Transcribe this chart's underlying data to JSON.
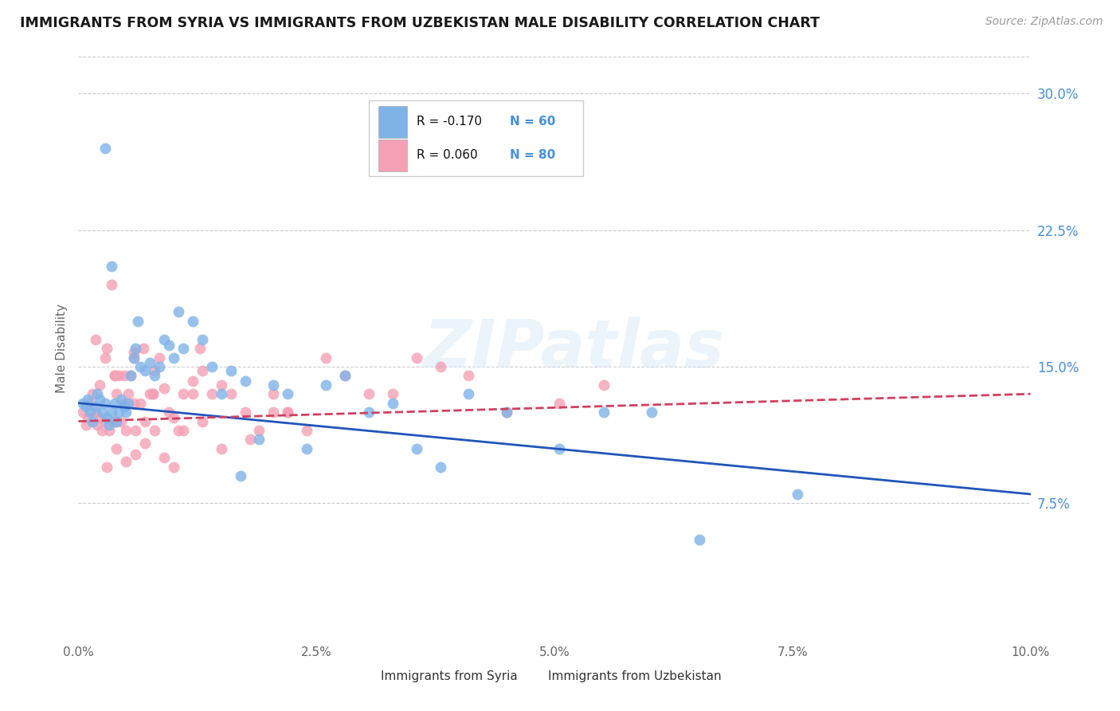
{
  "title": "IMMIGRANTS FROM SYRIA VS IMMIGRANTS FROM UZBEKISTAN MALE DISABILITY CORRELATION CHART",
  "source": "Source: ZipAtlas.com",
  "ylabel": "Male Disability",
  "xlim": [
    0.0,
    10.0
  ],
  "ylim": [
    0.0,
    32.0
  ],
  "x_ticks": [
    0.0,
    2.5,
    5.0,
    7.5,
    10.0
  ],
  "y_ticks_right": [
    7.5,
    15.0,
    22.5,
    30.0
  ],
  "legend_syria": "Immigrants from Syria",
  "legend_uzbekistan": "Immigrants from Uzbekistan",
  "R_syria": -0.17,
  "N_syria": 60,
  "R_uzbekistan": 0.06,
  "N_uzbekistan": 80,
  "syria_dot_color": "#7fb3e8",
  "uzbekistan_dot_color": "#f4a0b5",
  "syria_line_color": "#2255bb",
  "uzbekistan_line_color": "#d04060",
  "grid_color": "#cccccc",
  "watermark": "ZIPatlas",
  "syria_x": [
    0.05,
    0.08,
    0.1,
    0.12,
    0.15,
    0.18,
    0.2,
    0.22,
    0.25,
    0.28,
    0.3,
    0.32,
    0.35,
    0.38,
    0.4,
    0.42,
    0.45,
    0.48,
    0.5,
    0.52,
    0.55,
    0.58,
    0.6,
    0.62,
    0.65,
    0.7,
    0.75,
    0.8,
    0.85,
    0.9,
    0.95,
    1.0,
    1.05,
    1.1,
    1.2,
    1.3,
    1.4,
    1.5,
    1.6,
    1.75,
    1.9,
    2.05,
    2.2,
    2.4,
    2.6,
    2.8,
    3.05,
    3.3,
    3.55,
    3.8,
    4.1,
    4.5,
    5.05,
    5.52,
    6.02,
    6.52,
    0.28,
    0.35,
    7.55,
    1.7
  ],
  "syria_y": [
    13.0,
    12.8,
    13.2,
    12.5,
    12.0,
    12.8,
    13.5,
    13.2,
    12.5,
    13.0,
    12.2,
    11.8,
    12.5,
    13.0,
    12.0,
    12.5,
    13.2,
    12.8,
    12.5,
    13.0,
    14.5,
    15.5,
    16.0,
    17.5,
    15.0,
    14.8,
    15.2,
    14.5,
    15.0,
    16.5,
    16.2,
    15.5,
    18.0,
    16.0,
    17.5,
    16.5,
    15.0,
    13.5,
    14.8,
    14.2,
    11.0,
    14.0,
    13.5,
    10.5,
    14.0,
    14.5,
    12.5,
    13.0,
    10.5,
    9.5,
    13.5,
    12.5,
    10.5,
    12.5,
    12.5,
    5.5,
    27.0,
    20.5,
    8.0,
    9.0
  ],
  "uzbekistan_x": [
    0.05,
    0.08,
    0.1,
    0.12,
    0.15,
    0.18,
    0.2,
    0.22,
    0.25,
    0.28,
    0.3,
    0.32,
    0.35,
    0.38,
    0.4,
    0.42,
    0.45,
    0.48,
    0.5,
    0.52,
    0.55,
    0.58,
    0.6,
    0.65,
    0.7,
    0.75,
    0.8,
    0.85,
    0.9,
    0.95,
    1.0,
    1.05,
    1.1,
    1.2,
    1.3,
    1.4,
    1.5,
    1.6,
    1.75,
    1.9,
    2.05,
    2.2,
    2.4,
    2.6,
    2.8,
    3.05,
    3.3,
    3.55,
    3.8,
    4.1,
    4.5,
    5.05,
    5.52,
    0.3,
    0.4,
    0.5,
    0.6,
    0.7,
    0.8,
    0.9,
    1.0,
    1.1,
    1.2,
    1.3,
    1.5,
    1.8,
    2.2,
    0.18,
    0.28,
    0.38,
    0.48,
    0.58,
    0.68,
    0.78,
    0.38,
    0.58,
    0.78,
    1.28,
    2.05,
    0.22
  ],
  "uzbekistan_y": [
    12.5,
    11.8,
    12.2,
    13.0,
    13.5,
    12.5,
    11.8,
    12.2,
    11.5,
    12.0,
    16.0,
    11.5,
    19.5,
    12.0,
    13.5,
    14.5,
    12.0,
    13.0,
    11.5,
    13.5,
    14.5,
    13.0,
    11.5,
    13.0,
    12.0,
    13.5,
    14.8,
    15.5,
    13.8,
    12.5,
    12.2,
    11.5,
    13.5,
    14.2,
    14.8,
    13.5,
    14.0,
    13.5,
    12.5,
    11.5,
    12.5,
    12.5,
    11.5,
    15.5,
    14.5,
    13.5,
    13.5,
    15.5,
    15.0,
    14.5,
    12.5,
    13.0,
    14.0,
    9.5,
    10.5,
    9.8,
    10.2,
    10.8,
    11.5,
    10.0,
    9.5,
    11.5,
    13.5,
    12.0,
    10.5,
    11.0,
    12.5,
    16.5,
    15.5,
    14.5,
    14.5,
    15.8,
    16.0,
    13.5,
    14.5,
    15.5,
    13.5,
    16.0,
    13.5,
    14.0
  ]
}
